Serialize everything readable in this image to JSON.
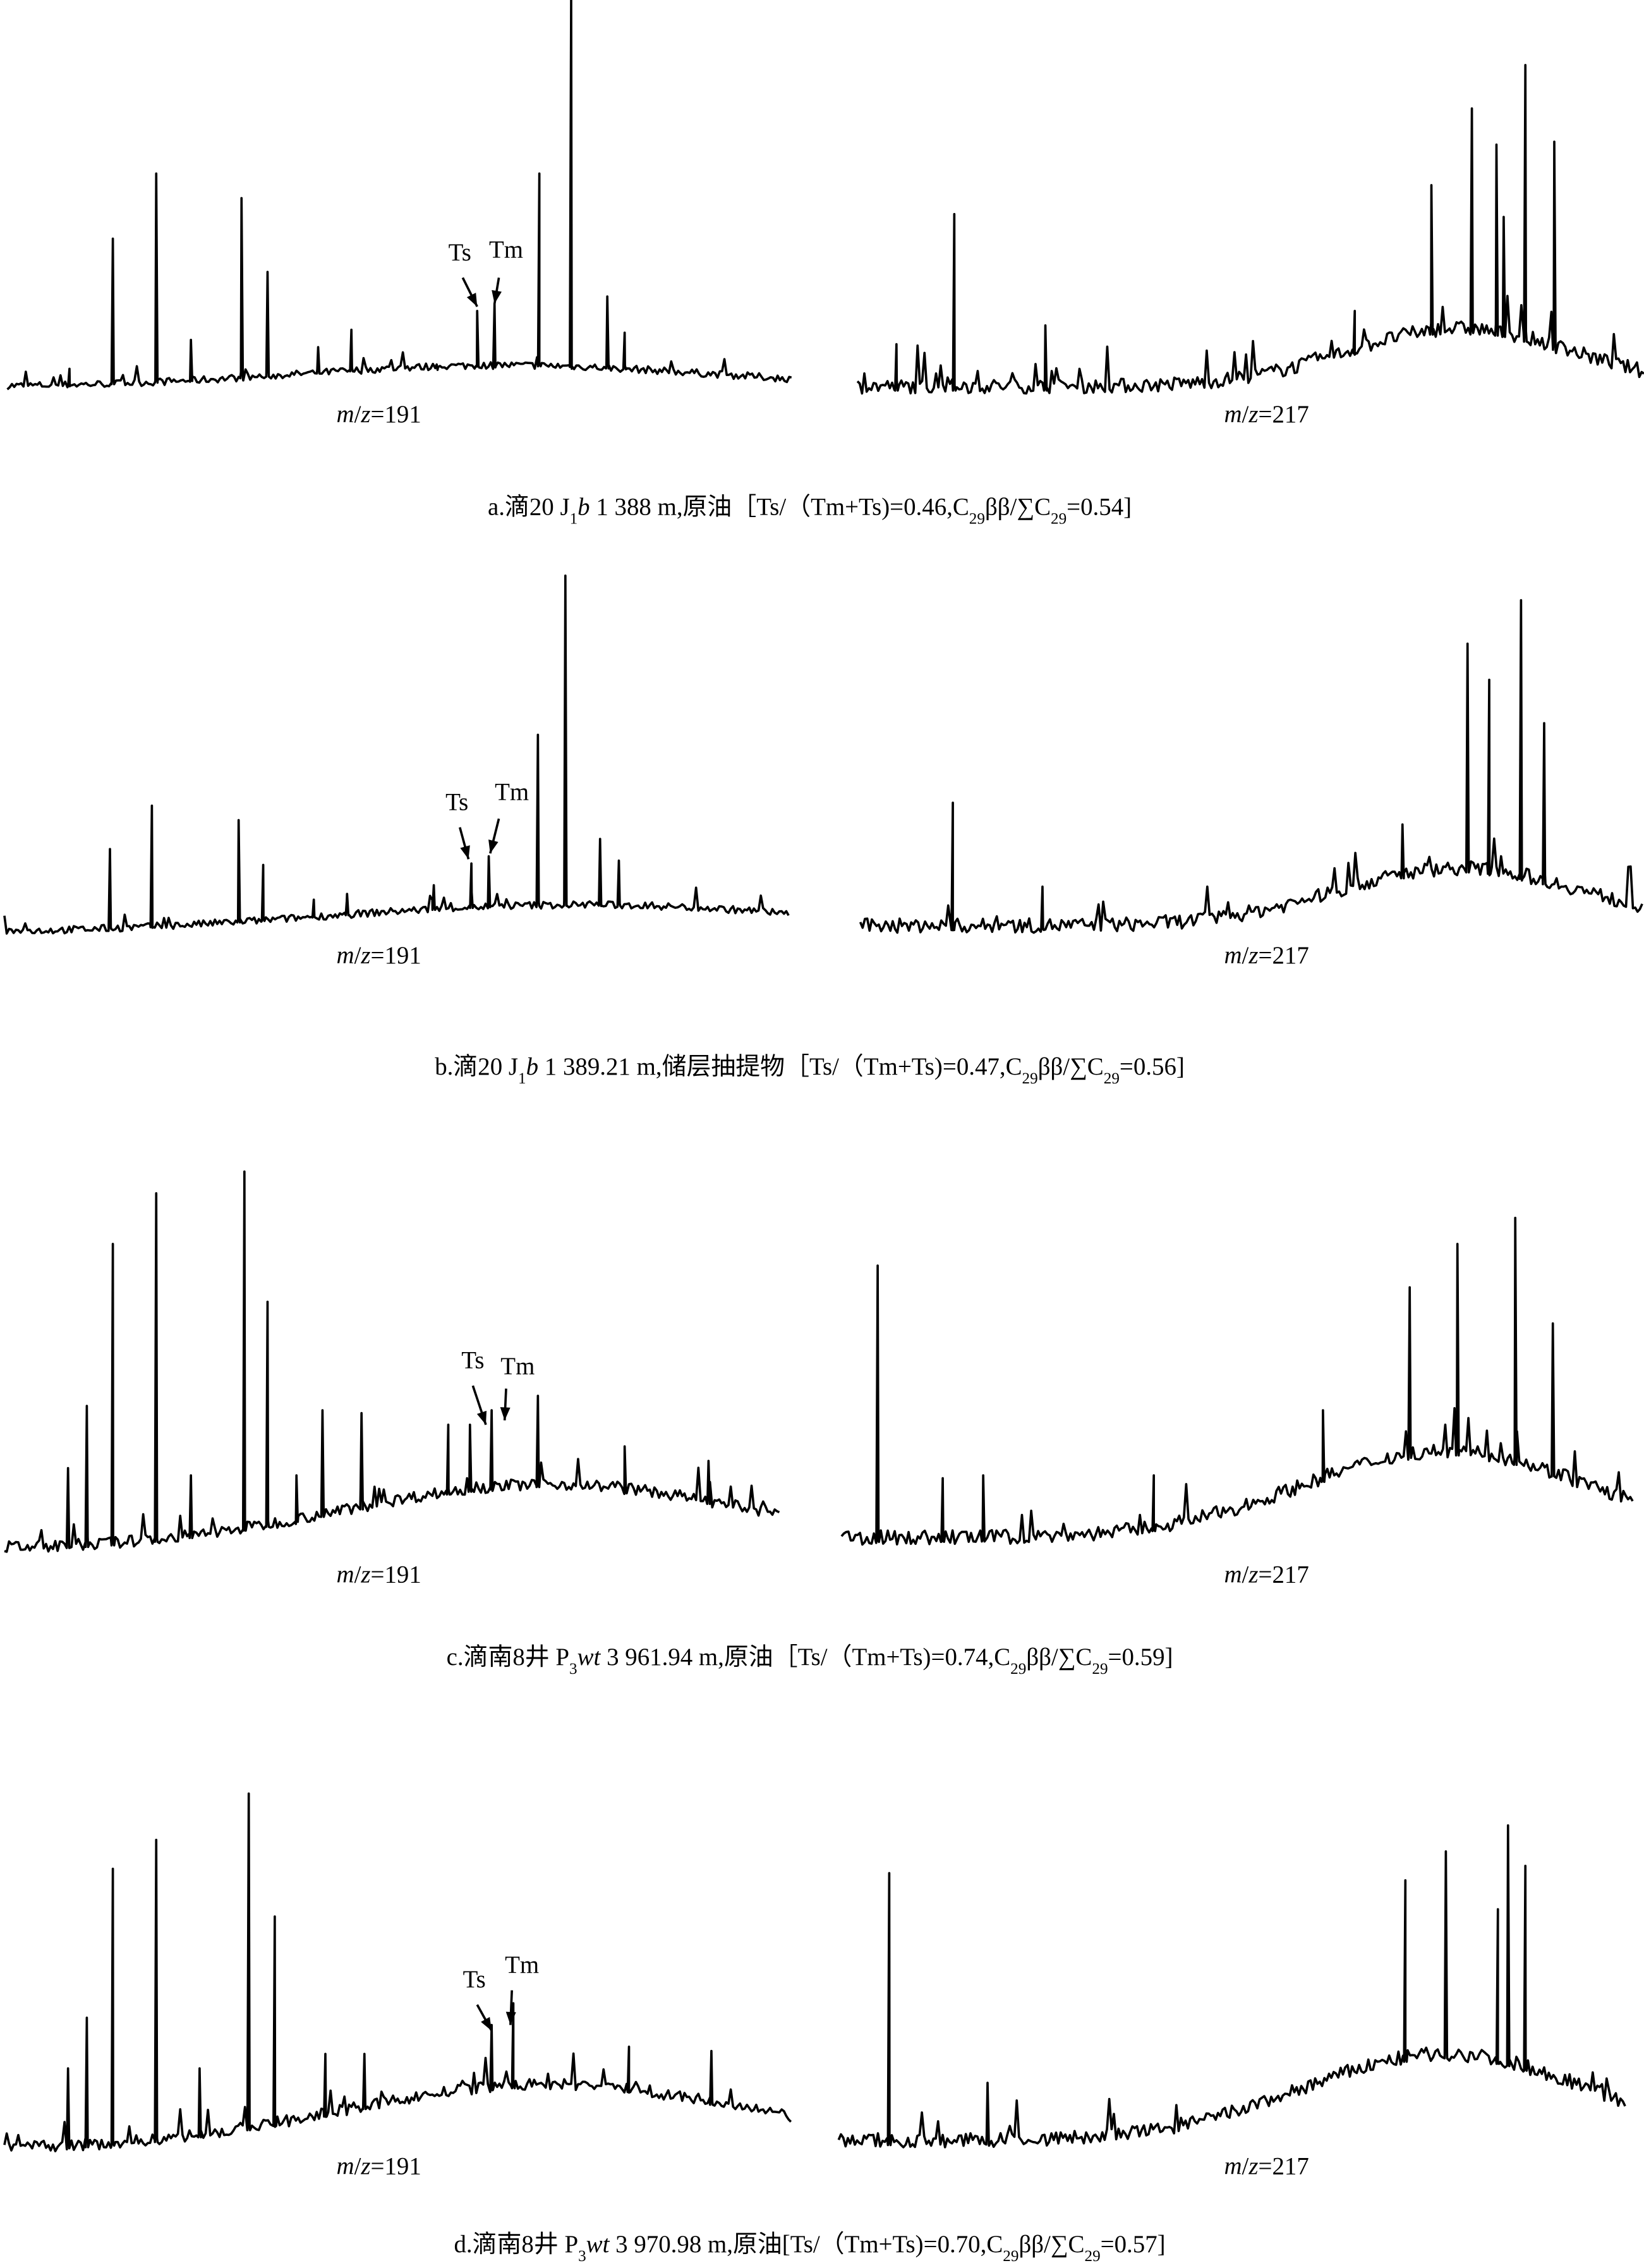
{
  "panels": [
    {
      "ts": "Ts",
      "tm": "Tm",
      "mz_left": [
        {
          "text": "m",
          "style": "italic"
        },
        {
          "text": "/"
        },
        {
          "text": "z",
          "style": "italic"
        },
        {
          "text": "=191"
        }
      ],
      "mz_right": [
        {
          "text": "m",
          "style": "italic"
        },
        {
          "text": "/"
        },
        {
          "text": "z",
          "style": "italic"
        },
        {
          "text": "=217"
        }
      ],
      "caption": [
        {
          "text": "a.滴20  J"
        },
        {
          "text": "1",
          "style": "sub"
        },
        {
          "text": "b",
          "style": "italic"
        },
        {
          "text": " 1 388 m,原油［Ts/（Tm+Ts)=0.46,C"
        },
        {
          "text": "29",
          "style": "sub"
        },
        {
          "text": "ββ/∑C"
        },
        {
          "text": "29",
          "style": "sub"
        },
        {
          "text": "=0.54]"
        }
      ]
    },
    {
      "ts": "Ts",
      "tm": "Tm",
      "mz_left": [
        {
          "text": "m",
          "style": "italic"
        },
        {
          "text": "/"
        },
        {
          "text": "z",
          "style": "italic"
        },
        {
          "text": "=191"
        }
      ],
      "mz_right": [
        {
          "text": "m",
          "style": "italic"
        },
        {
          "text": "/"
        },
        {
          "text": "z",
          "style": "italic"
        },
        {
          "text": "=217"
        }
      ],
      "caption": [
        {
          "text": "b.滴20 J"
        },
        {
          "text": "1",
          "style": "sub"
        },
        {
          "text": "b",
          "style": "italic"
        },
        {
          "text": " 1 389.21 m,储层抽提物［Ts/（Tm+Ts)=0.47,C"
        },
        {
          "text": "29",
          "style": "sub"
        },
        {
          "text": "ββ/∑C"
        },
        {
          "text": "29",
          "style": "sub"
        },
        {
          "text": "=0.56]"
        }
      ]
    },
    {
      "ts": "Ts",
      "tm": "Tm",
      "mz_left": [
        {
          "text": "m",
          "style": "italic"
        },
        {
          "text": "/"
        },
        {
          "text": "z",
          "style": "italic"
        },
        {
          "text": "=191"
        }
      ],
      "mz_right": [
        {
          "text": "m",
          "style": "italic"
        },
        {
          "text": "/"
        },
        {
          "text": "z",
          "style": "italic"
        },
        {
          "text": "=217"
        }
      ],
      "caption": [
        {
          "text": "c.滴南8井  P"
        },
        {
          "text": "3",
          "style": "sub"
        },
        {
          "text": "wt",
          "style": "italic"
        },
        {
          "text": " 3 961.94 m,原油［Ts/（Tm+Ts)=0.74,C"
        },
        {
          "text": "29",
          "style": "sub"
        },
        {
          "text": "ββ/∑C"
        },
        {
          "text": "29",
          "style": "sub"
        },
        {
          "text": "=0.59]"
        }
      ]
    },
    {
      "ts": "Ts",
      "tm": "Tm",
      "mz_left": [
        {
          "text": "m",
          "style": "italic"
        },
        {
          "text": "/"
        },
        {
          "text": "z",
          "style": "italic"
        },
        {
          "text": "=191"
        }
      ],
      "mz_right": [
        {
          "text": "m",
          "style": "italic"
        },
        {
          "text": "/"
        },
        {
          "text": "z",
          "style": "italic"
        },
        {
          "text": "=217"
        }
      ],
      "caption": [
        {
          "text": "d.滴南8井  P"
        },
        {
          "text": "3",
          "style": "sub"
        },
        {
          "text": "wt",
          "style": "italic"
        },
        {
          "text": " 3 970.98 m,原油[Ts/（Tm+Ts)=0.70,C"
        },
        {
          "text": "29",
          "style": "sub"
        },
        {
          "text": "ββ/∑C"
        },
        {
          "text": "29",
          "style": "sub"
        },
        {
          "text": "=0.57]"
        }
      ]
    }
  ]
}
